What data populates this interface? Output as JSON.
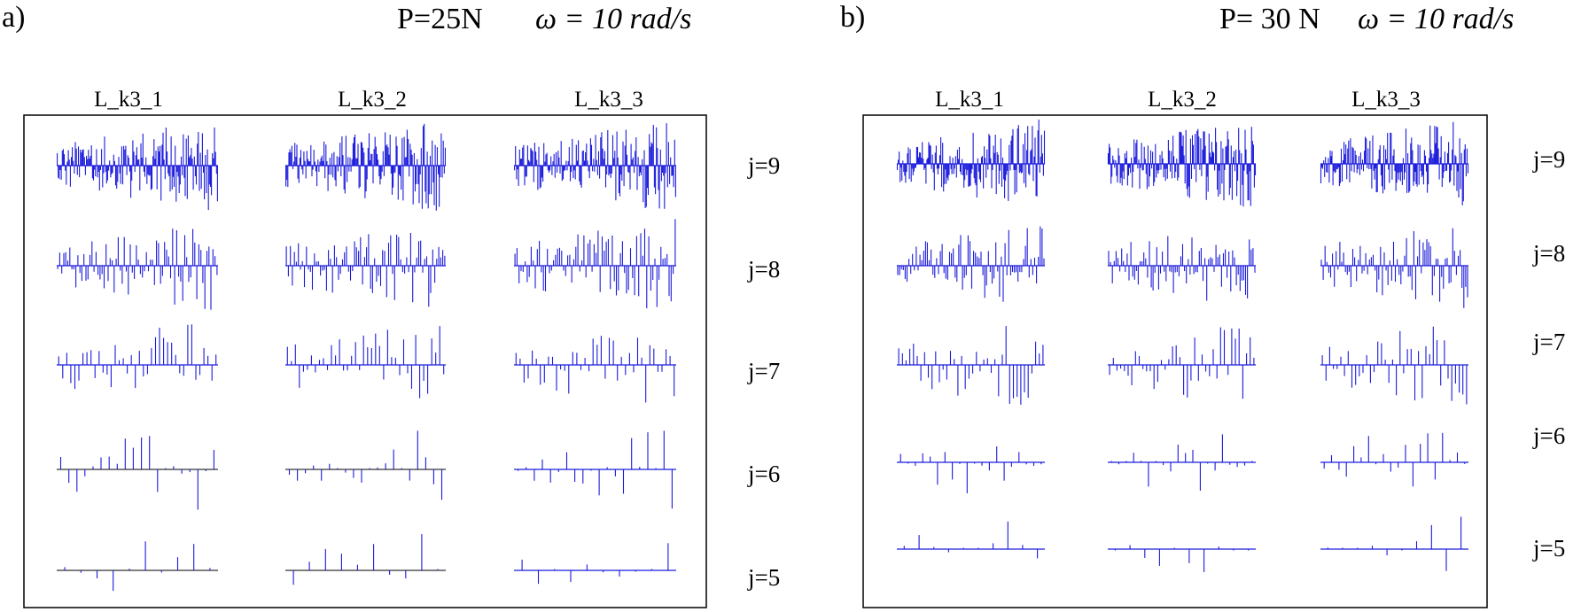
{
  "chart_data": [
    {
      "type": "bar",
      "panel_label": "a)",
      "title_load": "P=25N",
      "title_speed": "ω = 10 rad/s",
      "columns": [
        "L_k3_1",
        "L_k3_2",
        "L_k3_3"
      ],
      "rows": [
        "j=9",
        "j=8",
        "j=7",
        "j=6",
        "j=5"
      ],
      "coefficient_counts": [
        160,
        80,
        40,
        20,
        10
      ],
      "grid": false
    },
    {
      "type": "bar",
      "panel_label": "b)",
      "title_load": "P= 30 N",
      "title_speed": "ω = 10 rad/s",
      "columns": [
        "L_k3_1",
        "L_k3_2",
        "L_k3_3"
      ],
      "rows": [
        "j=9",
        "j=8",
        "j=7",
        "j=6",
        "j=5"
      ],
      "coefficient_counts": [
        160,
        80,
        40,
        20,
        10
      ],
      "grid": false
    }
  ],
  "style": {
    "bar_color": "#1a1adc",
    "frame_color": "#000000"
  }
}
